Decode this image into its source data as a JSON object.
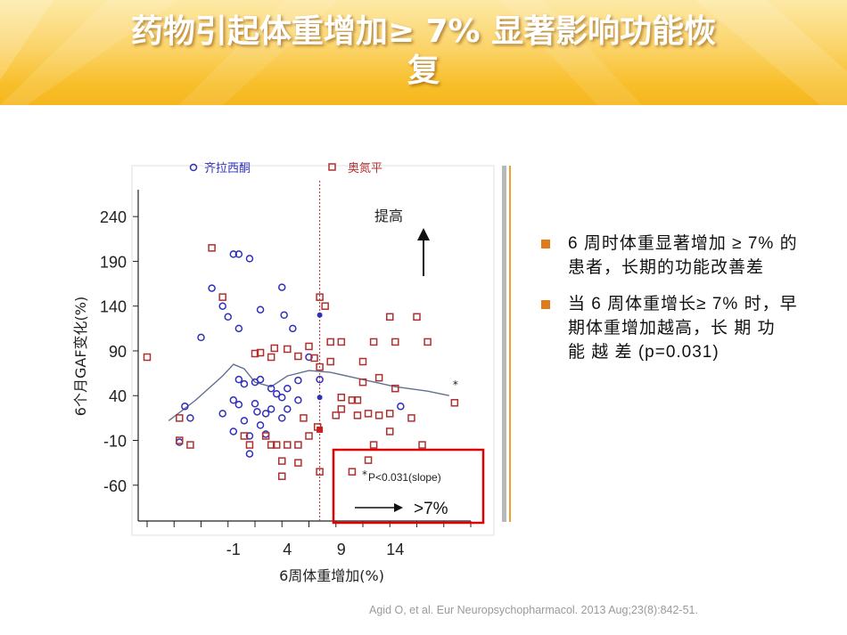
{
  "title_line1": "药物引起体重增加≥ 7% 显著影响功能恢",
  "title_line2": "复",
  "bullets": [
    "6 周时体重显著增加 ≥ 7% 的患者，长期的功能改善差",
    "当 6 周体重增长≥ 7% 时，早期体重增加越高，长 期 功 能 越 差 (p=0.031)"
  ],
  "citation": "Agid O,   et al.  Eur Neuropsychopharmacol. 2013 Aug;23(8):842-51.",
  "colors": {
    "accent": "#e07a1a",
    "ziprasidone": "#3030b8",
    "olanzapine": "#b03030",
    "box": "#e00000",
    "curve": "#607090"
  },
  "chart_data": {
    "type": "scatter",
    "xlabel": "6周体重增加(%)",
    "ylabel": "6个月GAF变化(%)",
    "x_ticks": [
      -1,
      4,
      9,
      14
    ],
    "y_ticks": [
      240,
      190,
      140,
      90,
      40,
      -10,
      -60
    ],
    "xlim": [
      -9,
      21
    ],
    "ylim": [
      -100,
      270
    ],
    "legend_position": "top",
    "annotations": {
      "up_label": "提高",
      "threshold_x": 7,
      "box_text": "P<0.031(slope)",
      "box_star": "*",
      "curve_star": "*",
      "arrow_label": ">7%"
    },
    "series": [
      {
        "name": "齐拉西酮",
        "marker": "circle",
        "color": "#3030b8",
        "points": [
          [
            -3,
            160
          ],
          [
            -2,
            140
          ],
          [
            -1,
            198
          ],
          [
            -0.5,
            198
          ],
          [
            0.5,
            193
          ],
          [
            -1.5,
            128
          ],
          [
            -0.5,
            115
          ],
          [
            1.5,
            136
          ],
          [
            3.5,
            161
          ],
          [
            3.7,
            130
          ],
          [
            4.5,
            115
          ],
          [
            6,
            83
          ],
          [
            7,
            58
          ],
          [
            -4,
            105
          ],
          [
            -0.5,
            58
          ],
          [
            0,
            53
          ],
          [
            1,
            55
          ],
          [
            1.5,
            58
          ],
          [
            2.5,
            48
          ],
          [
            3,
            42
          ],
          [
            3.5,
            38
          ],
          [
            4,
            48
          ],
          [
            5,
            57
          ],
          [
            -1,
            35
          ],
          [
            -0.5,
            30
          ],
          [
            1,
            31
          ],
          [
            1.2,
            22
          ],
          [
            2.5,
            25
          ],
          [
            4,
            25
          ],
          [
            -5.5,
            28
          ],
          [
            -5,
            15
          ],
          [
            -2,
            20
          ],
          [
            0,
            12
          ],
          [
            2,
            20
          ],
          [
            3.5,
            15
          ],
          [
            1.5,
            7
          ],
          [
            0.5,
            -5
          ],
          [
            -1,
            0
          ],
          [
            2,
            -3
          ],
          [
            -6,
            -12
          ],
          [
            0.5,
            -25
          ],
          [
            14.5,
            28
          ],
          [
            5,
            35
          ]
        ]
      },
      {
        "name": "奥氮平",
        "marker": "square",
        "color": "#b03030",
        "points": [
          [
            -9,
            83
          ],
          [
            -3,
            205
          ],
          [
            -2,
            150
          ],
          [
            1,
            87
          ],
          [
            2.5,
            83
          ],
          [
            2.8,
            93
          ],
          [
            4,
            92
          ],
          [
            5,
            84
          ],
          [
            6,
            95
          ],
          [
            7,
            150
          ],
          [
            7,
            72
          ],
          [
            7.5,
            140
          ],
          [
            8,
            100
          ],
          [
            9,
            100
          ],
          [
            12,
            100
          ],
          [
            13.5,
            128
          ],
          [
            16,
            128
          ],
          [
            17,
            100
          ],
          [
            6.5,
            82
          ],
          [
            8,
            78
          ],
          [
            11,
            78
          ],
          [
            14,
            48
          ],
          [
            14,
            100
          ],
          [
            11,
            55
          ],
          [
            12.5,
            60
          ],
          [
            9,
            38
          ],
          [
            10,
            35
          ],
          [
            10.5,
            35
          ],
          [
            8.5,
            18
          ],
          [
            9,
            25
          ],
          [
            10.5,
            18
          ],
          [
            11.5,
            20
          ],
          [
            12.5,
            18
          ],
          [
            13.5,
            20
          ],
          [
            15.5,
            15
          ],
          [
            19.5,
            32
          ],
          [
            -6,
            15
          ],
          [
            -6,
            -10
          ],
          [
            -5,
            -15
          ],
          [
            0,
            -5
          ],
          [
            0.5,
            -15
          ],
          [
            2,
            -5
          ],
          [
            2.5,
            -15
          ],
          [
            3,
            -15
          ],
          [
            4,
            -15
          ],
          [
            5,
            -15
          ],
          [
            6,
            -5
          ],
          [
            3.5,
            -33
          ],
          [
            3.5,
            -50
          ],
          [
            5,
            -35
          ],
          [
            7,
            -45
          ],
          [
            10,
            -45
          ],
          [
            11.5,
            -32
          ],
          [
            12,
            -15
          ],
          [
            13.5,
            0
          ],
          [
            16.5,
            -15
          ],
          [
            6.8,
            5
          ],
          [
            5.5,
            15
          ],
          [
            1.5,
            88
          ]
        ]
      },
      {
        "name": "filled",
        "marker": "filled",
        "points": [
          [
            7,
            130
          ],
          [
            7,
            38
          ],
          [
            7,
            2
          ]
        ],
        "colors": [
          "#3030b8",
          "#3030b8",
          "#cc2020"
        ]
      }
    ],
    "trend_curve": [
      [
        -7,
        12
      ],
      [
        -4.5,
        35
      ],
      [
        -2,
        62
      ],
      [
        -1,
        75
      ],
      [
        0,
        70
      ],
      [
        1,
        55
      ],
      [
        2.5,
        50
      ],
      [
        4,
        62
      ],
      [
        6,
        68
      ],
      [
        8,
        66
      ],
      [
        11,
        58
      ],
      [
        14,
        50
      ],
      [
        17,
        45
      ],
      [
        19,
        40
      ]
    ]
  }
}
